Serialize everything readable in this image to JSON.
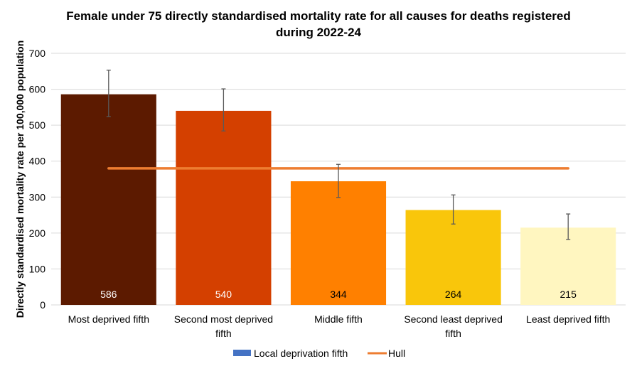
{
  "chart_data": {
    "type": "bar",
    "title_lines": [
      "Female under 75 directly standardised mortality rate for all causes for deaths registered",
      "during 2022-24"
    ],
    "xlabel": "",
    "ylabel": "Directly standardised mortality rate per 100,000 population",
    "ylim": [
      0,
      700
    ],
    "yticks": [
      0,
      100,
      200,
      300,
      400,
      500,
      600,
      700
    ],
    "grid": true,
    "legend_position": "bottom",
    "categories": [
      [
        "Most deprived fifth"
      ],
      [
        "Second most deprived",
        "fifth"
      ],
      [
        "Middle fifth"
      ],
      [
        "Second least deprived",
        "fifth"
      ],
      [
        "Least deprived fifth"
      ]
    ],
    "series": [
      {
        "name": "Local deprivation fifth",
        "type": "bar",
        "legend_color": "#4472C4",
        "values": [
          586,
          540,
          344,
          264,
          215
        ],
        "colors": [
          "#5C1A00",
          "#D44000",
          "#FF8000",
          "#F9C60B",
          "#FFF6C0"
        ],
        "label_colors": [
          "#FFFFFF",
          "#FFFFFF",
          "#000000",
          "#000000",
          "#000000"
        ],
        "error_low": [
          524,
          484,
          299,
          225,
          182
        ],
        "error_high": [
          653,
          601,
          391,
          306,
          253
        ]
      },
      {
        "name": "Hull",
        "type": "line",
        "color": "#ED7D31",
        "values": [
          380,
          380,
          380,
          380,
          380
        ]
      }
    ]
  }
}
